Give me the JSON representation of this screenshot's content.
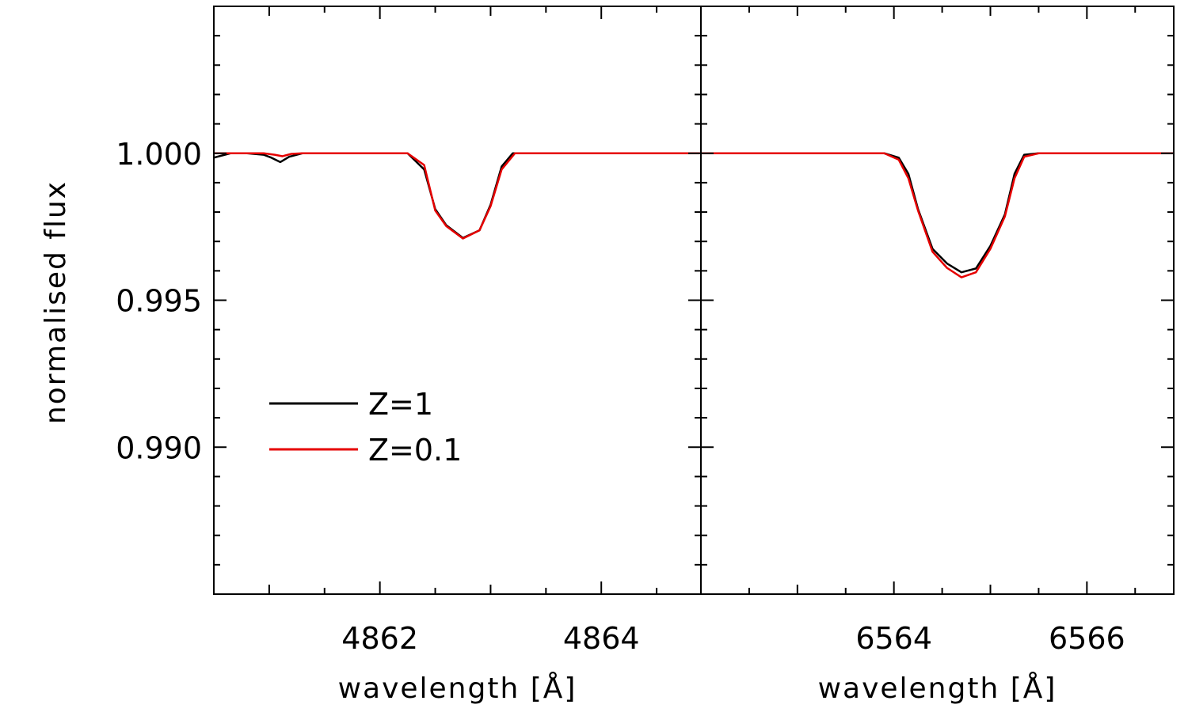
{
  "chart_data": {
    "type": "line",
    "ylabel": "normalised flux",
    "ylim": [
      0.985,
      1.005
    ],
    "yticks": [
      0.99,
      0.995,
      1.0
    ],
    "ytick_labels": [
      "0.990",
      "0.995",
      "1.000"
    ],
    "legend": {
      "placement": "left-middle",
      "entries": [
        {
          "label": "Z=1",
          "color": "#000000"
        },
        {
          "label": "Z=0.1",
          "color": "#e60000"
        }
      ]
    },
    "panels": [
      {
        "xlabel": "wavelength [Å]",
        "xlim": [
          4860.5,
          4864.9
        ],
        "xticks": [
          4862,
          4864
        ],
        "xtick_labels": [
          "4862",
          "4864"
        ],
        "series": [
          {
            "name": "Z=1",
            "color": "#000000",
            "x": [
              4860.5,
              4860.65,
              4860.8,
              4860.95,
              4861.02,
              4861.1,
              4861.18,
              4861.3,
              4861.5,
              4862.0,
              4862.25,
              4862.4,
              4862.5,
              4862.6,
              4862.75,
              4862.9,
              4863.0,
              4863.1,
              4863.2,
              4863.4,
              4864.9
            ],
            "y": [
              0.99985,
              1.0,
              1.0,
              0.99995,
              0.99985,
              0.9997,
              0.99988,
              1.0,
              1.0,
              1.0,
              1.0,
              0.99945,
              0.9981,
              0.99755,
              0.99712,
              0.99738,
              0.99825,
              0.99955,
              1.0,
              1.0,
              1.0
            ]
          },
          {
            "name": "Z=0.1",
            "color": "#e60000",
            "x": [
              4860.5,
              4860.8,
              4860.95,
              4861.05,
              4861.12,
              4861.2,
              4861.3,
              4861.5,
              4862.0,
              4862.25,
              4862.4,
              4862.5,
              4862.6,
              4862.75,
              4862.9,
              4863.0,
              4863.1,
              4863.22,
              4863.4,
              4864.9
            ],
            "y": [
              1.0,
              1.0,
              1.0,
              0.99995,
              0.9999,
              0.99998,
              1.0,
              1.0,
              1.0,
              1.0,
              0.9996,
              0.99805,
              0.99752,
              0.9971,
              0.99738,
              0.9982,
              0.99945,
              1.0,
              1.0,
              1.0
            ]
          }
        ]
      },
      {
        "xlabel": "wavelength [Å]",
        "xlim": [
          6562.0,
          6566.9
        ],
        "xticks": [
          6564,
          6566
        ],
        "xtick_labels": [
          "6564",
          "6566"
        ],
        "series": [
          {
            "name": "Z=1",
            "color": "#000000",
            "x": [
              6562.0,
              6563.9,
              6564.05,
              6564.15,
              6564.25,
              6564.4,
              6564.55,
              6564.7,
              6564.85,
              6565.0,
              6565.15,
              6565.25,
              6565.35,
              6565.5,
              6566.9
            ],
            "y": [
              1.0,
              1.0,
              0.99985,
              0.9993,
              0.9981,
              0.99675,
              0.99625,
              0.99595,
              0.99608,
              0.99685,
              0.99792,
              0.9993,
              0.99995,
              1.0,
              1.0
            ]
          },
          {
            "name": "Z=0.1",
            "color": "#e60000",
            "x": [
              6562.0,
              6563.9,
              6564.05,
              6564.15,
              6564.25,
              6564.4,
              6564.55,
              6564.7,
              6564.85,
              6565.0,
              6565.15,
              6565.25,
              6565.35,
              6565.5,
              6566.9
            ],
            "y": [
              1.0,
              1.0,
              0.99978,
              0.99915,
              0.99805,
              0.99665,
              0.9961,
              0.99578,
              0.99595,
              0.99675,
              0.99785,
              0.99915,
              0.99988,
              1.0,
              1.0
            ]
          }
        ]
      }
    ]
  }
}
